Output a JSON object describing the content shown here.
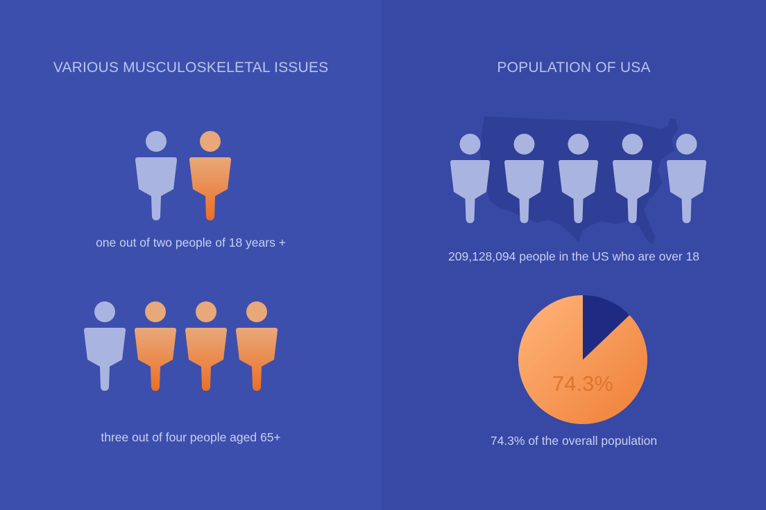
{
  "colors": {
    "left_background": "#3d4fac",
    "right_background": "#3748a5",
    "person_light": "#a9b5e0",
    "person_orange_top": "#e9a87a",
    "person_orange_bottom": "#ec6f24",
    "map": "#2f3e96",
    "pie_orange": "#f5914a",
    "pie_dark": "#1f2b82",
    "pie_label": "#d9772f"
  },
  "left": {
    "title": "VARIOUS MUSCULOSKELETAL ISSUES",
    "group1": {
      "people": [
        "light",
        "orange"
      ],
      "caption": "one out of two people of 18 years +"
    },
    "group2": {
      "people": [
        "light",
        "orange",
        "orange",
        "orange"
      ],
      "caption": "three out of four people aged 65+"
    }
  },
  "right": {
    "title": "POPULATION OF USA",
    "people": [
      "light",
      "light",
      "light",
      "light",
      "light"
    ],
    "caption": "209,128,094 people in the US who are over 18",
    "pie_label": "74.3%",
    "pie_caption": "74.3% of the overall population"
  },
  "chart_data": [
    {
      "type": "pictograph",
      "title": "one out of two people of 18 years +",
      "highlighted": 1,
      "total": 2
    },
    {
      "type": "pictograph",
      "title": "three out of four people aged 65+",
      "highlighted": 3,
      "total": 4
    },
    {
      "type": "pie",
      "title": "74.3% of the overall population",
      "slices": [
        {
          "label": "74.3%",
          "value": 74.3
        },
        {
          "label": "",
          "value": 25.7
        }
      ]
    }
  ]
}
